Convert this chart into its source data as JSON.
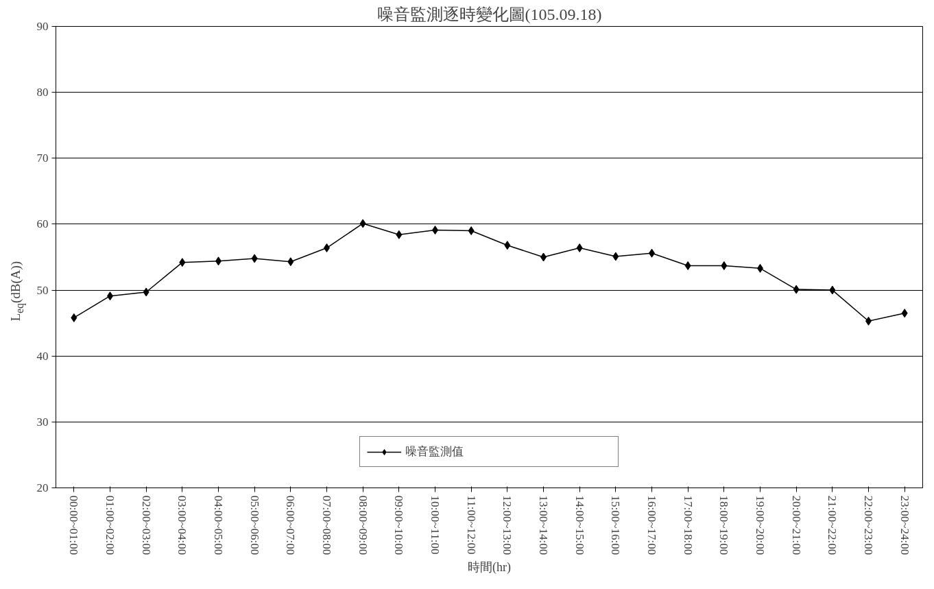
{
  "chart_data": {
    "type": "line",
    "title": "噪音監測逐時變化圖(105.09.18)",
    "xlabel": "時間(hr)",
    "ylabel": "L$_{eq}$(dB(A))",
    "categories": [
      "00:00~01:00",
      "01:00~02:00",
      "02:00~03:00",
      "03:00~04:00",
      "04:00~05:00",
      "05:00~06:00",
      "06:00~07:00",
      "07:00~08:00",
      "08:00~09:00",
      "09:00~10:00",
      "10:00~11:00",
      "11:00~12:00",
      "12:00~13:00",
      "13:00~14:00",
      "14:00~15:00",
      "15:00~16:00",
      "16:00~17:00",
      "17:00~18:00",
      "18:00~19:00",
      "19:00~20:00",
      "20:00~21:00",
      "21:00~22:00",
      "22:00~23:00",
      "23:00~24:00"
    ],
    "series": [
      {
        "name": "噪音監測值",
        "color": "#000000",
        "values": [
          45.8,
          49.1,
          49.7,
          54.2,
          54.4,
          54.8,
          54.3,
          56.4,
          60.1,
          58.4,
          59.1,
          59.0,
          56.8,
          55.0,
          56.4,
          55.1,
          55.6,
          53.7,
          53.7,
          53.3,
          50.1,
          50.0,
          45.3,
          46.5
        ]
      }
    ],
    "ylim": [
      20,
      90
    ],
    "yticks": [
      20,
      30,
      40,
      50,
      60,
      70,
      80,
      90
    ],
    "grid": "y",
    "legend": "bottom",
    "marker": "diamond",
    "line_style": "solid"
  }
}
